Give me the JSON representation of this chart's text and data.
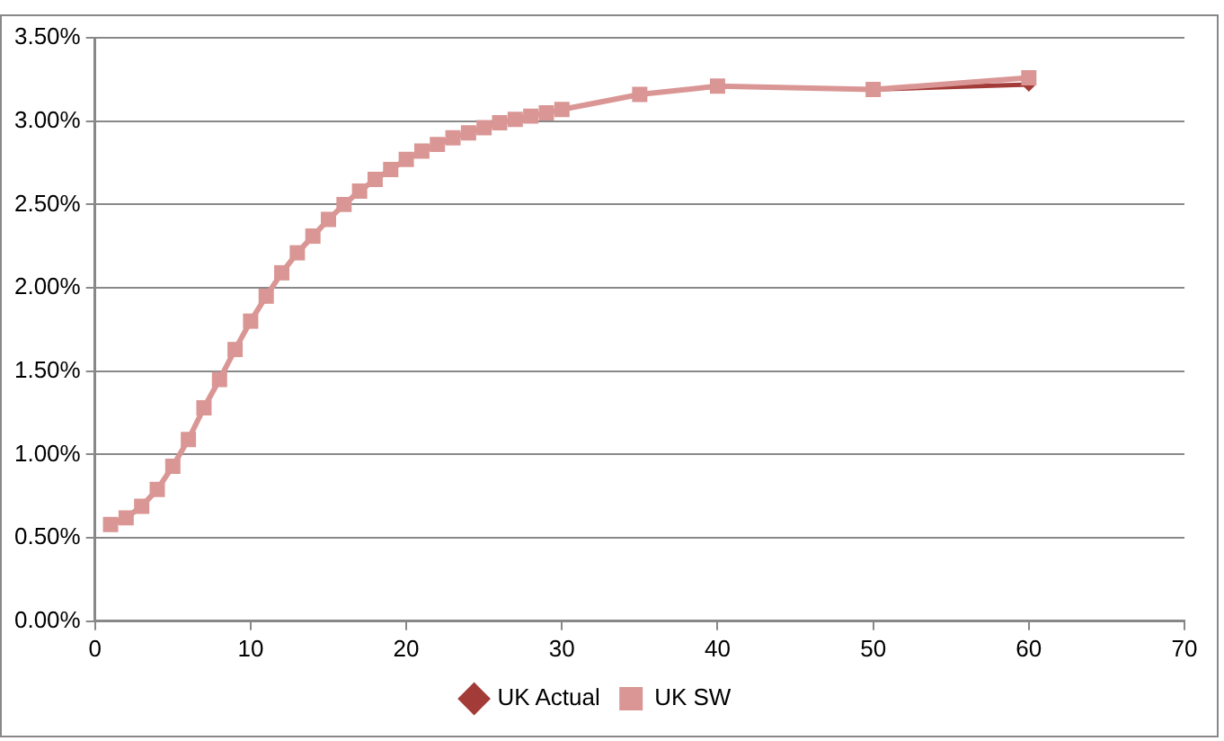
{
  "chart_data": {
    "type": "line",
    "x": [
      1,
      2,
      3,
      4,
      5,
      6,
      7,
      8,
      9,
      10,
      11,
      12,
      13,
      14,
      15,
      16,
      17,
      18,
      19,
      20,
      21,
      22,
      23,
      24,
      25,
      26,
      27,
      28,
      29,
      30,
      35,
      40,
      50,
      60
    ],
    "series": [
      {
        "name": "UK Actual",
        "color": "#a33b38",
        "marker": "diamond",
        "values": [
          null,
          null,
          null,
          null,
          null,
          null,
          null,
          null,
          null,
          null,
          null,
          null,
          null,
          null,
          null,
          null,
          null,
          null,
          null,
          null,
          null,
          null,
          null,
          null,
          null,
          null,
          null,
          null,
          null,
          null,
          null,
          null,
          3.19,
          3.22
        ]
      },
      {
        "name": "UK SW",
        "color": "#d99694",
        "marker": "square",
        "values": [
          0.58,
          0.62,
          0.69,
          0.79,
          0.93,
          1.09,
          1.28,
          1.45,
          1.63,
          1.8,
          1.95,
          2.09,
          2.21,
          2.31,
          2.41,
          2.5,
          2.58,
          2.65,
          2.71,
          2.77,
          2.82,
          2.86,
          2.9,
          2.93,
          2.96,
          2.99,
          3.01,
          3.03,
          3.05,
          3.07,
          3.16,
          3.21,
          3.19,
          3.26
        ]
      }
    ],
    "xlim": [
      0,
      70
    ],
    "xticks": [
      0,
      10,
      20,
      30,
      40,
      50,
      60,
      70
    ],
    "ylim": [
      0,
      3.5
    ],
    "yticks": [
      {
        "value": 0,
        "label": "0.00%"
      },
      {
        "value": 0.5,
        "label": "0.50%"
      },
      {
        "value": 1,
        "label": "1.00%"
      },
      {
        "value": 1.5,
        "label": "1.50%"
      },
      {
        "value": 2,
        "label": "2.00%"
      },
      {
        "value": 2.5,
        "label": "2.50%"
      },
      {
        "value": 3,
        "label": "3.00%"
      },
      {
        "value": 3.5,
        "label": "3.50%"
      }
    ],
    "grid": "y",
    "legend": "bottom",
    "line_style": "solid"
  }
}
